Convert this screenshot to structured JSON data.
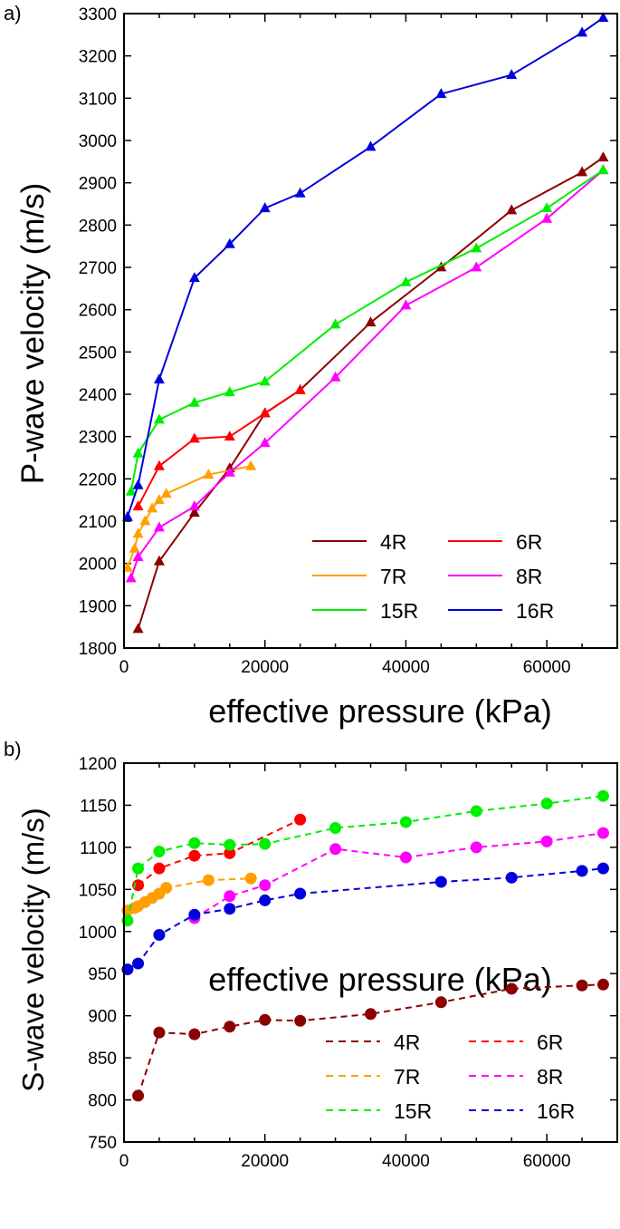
{
  "panels": [
    {
      "panel_label": "a)",
      "chart_data": {
        "type": "line",
        "title": "",
        "xlabel": "effective pressure (kPa)",
        "ylabel": "P-wave velocity (m/s)",
        "xlim": [
          0,
          70000
        ],
        "ylim": [
          1800,
          3300
        ],
        "xticks": [
          0,
          20000,
          40000,
          60000
        ],
        "yticks": [
          1800,
          1900,
          2000,
          2100,
          2200,
          2300,
          2400,
          2500,
          2600,
          2700,
          2800,
          2900,
          3000,
          3100,
          3200,
          3300
        ],
        "marker": "triangle",
        "line_style": "solid",
        "legend_position": "bottom-right",
        "series": [
          {
            "name": "4R",
            "color": "#8b0000",
            "x": [
              2000,
              5000,
              10000,
              15000,
              20000,
              25000,
              35000,
              45000,
              55000,
              65000,
              68000
            ],
            "y": [
              1845,
              2005,
              2120,
              2225,
              2355,
              2410,
              2570,
              2700,
              2835,
              2925,
              2960
            ]
          },
          {
            "name": "6R",
            "color": "#ff0000",
            "x": [
              2000,
              5000,
              10000,
              15000,
              20000,
              25000
            ],
            "y": [
              2135,
              2230,
              2295,
              2300,
              2355,
              2410
            ]
          },
          {
            "name": "7R",
            "color": "#ffa000",
            "x": [
              500,
              1500,
              2000,
              3000,
              4000,
              5000,
              6000,
              12000,
              18000
            ],
            "y": [
              1990,
              2035,
              2070,
              2100,
              2130,
              2150,
              2165,
              2210,
              2230
            ]
          },
          {
            "name": "8R",
            "color": "#ff00ff",
            "x": [
              1000,
              2000,
              5000,
              10000,
              15000,
              20000,
              30000,
              40000,
              50000,
              60000,
              68000
            ],
            "y": [
              1965,
              2015,
              2085,
              2135,
              2215,
              2285,
              2440,
              2610,
              2700,
              2815,
              2930
            ]
          },
          {
            "name": "15R",
            "color": "#00ee00",
            "x": [
              1000,
              2000,
              5000,
              10000,
              15000,
              20000,
              30000,
              40000,
              50000,
              60000,
              68000
            ],
            "y": [
              2170,
              2260,
              2340,
              2380,
              2405,
              2430,
              2565,
              2665,
              2745,
              2840,
              2930
            ]
          },
          {
            "name": "16R",
            "color": "#0000dd",
            "x": [
              500,
              2000,
              5000,
              10000,
              15000,
              20000,
              25000,
              35000,
              45000,
              55000,
              65000,
              68000
            ],
            "y": [
              2110,
              2185,
              2435,
              2675,
              2755,
              2840,
              2875,
              2985,
              3110,
              3155,
              3255,
              3290
            ]
          }
        ]
      }
    },
    {
      "panel_label": "b)",
      "chart_data": {
        "type": "line",
        "title": "",
        "xlabel": "effective pressure (kPa)",
        "ylabel": "S-wave velocity (m/s)",
        "xlim": [
          0,
          70000
        ],
        "ylim": [
          750,
          1200
        ],
        "xticks": [
          0,
          20000,
          40000,
          60000
        ],
        "yticks": [
          750,
          800,
          850,
          900,
          950,
          1000,
          1050,
          1100,
          1150,
          1200
        ],
        "marker": "circle",
        "line_style": "dashed",
        "legend_position": "bottom-right",
        "series": [
          {
            "name": "4R",
            "color": "#8b0000",
            "x": [
              2000,
              5000,
              10000,
              15000,
              20000,
              25000,
              35000,
              45000,
              55000,
              65000,
              68000
            ],
            "y": [
              805,
              880,
              878,
              887,
              895,
              894,
              902,
              916,
              932,
              936,
              937
            ]
          },
          {
            "name": "6R",
            "color": "#ff0000",
            "x": [
              2000,
              5000,
              10000,
              15000,
              25000
            ],
            "y": [
              1055,
              1075,
              1090,
              1093,
              1133
            ]
          },
          {
            "name": "7R",
            "color": "#ffa000",
            "x": [
              500,
              1500,
              2000,
              3000,
              4000,
              5000,
              6000,
              12000,
              18000
            ],
            "y": [
              1025,
              1028,
              1030,
              1035,
              1040,
              1045,
              1052,
              1061,
              1063
            ]
          },
          {
            "name": "8R",
            "color": "#ff00ff",
            "x": [
              10000,
              15000,
              20000,
              30000,
              40000,
              50000,
              60000,
              68000
            ],
            "y": [
              1016,
              1042,
              1055,
              1098,
              1088,
              1100,
              1107,
              1117
            ]
          },
          {
            "name": "15R",
            "color": "#00ee00",
            "x": [
              500,
              2000,
              5000,
              10000,
              15000,
              20000,
              30000,
              40000,
              50000,
              60000,
              68000
            ],
            "y": [
              1013,
              1075,
              1095,
              1105,
              1103,
              1104,
              1123,
              1130,
              1143,
              1152,
              1161
            ]
          },
          {
            "name": "16R",
            "color": "#0000dd",
            "x": [
              500,
              2000,
              5000,
              10000,
              15000,
              20000,
              25000,
              45000,
              55000,
              65000,
              68000
            ],
            "y": [
              955,
              962,
              996,
              1020,
              1027,
              1037,
              1045,
              1059,
              1064,
              1072,
              1075
            ]
          }
        ]
      }
    }
  ]
}
